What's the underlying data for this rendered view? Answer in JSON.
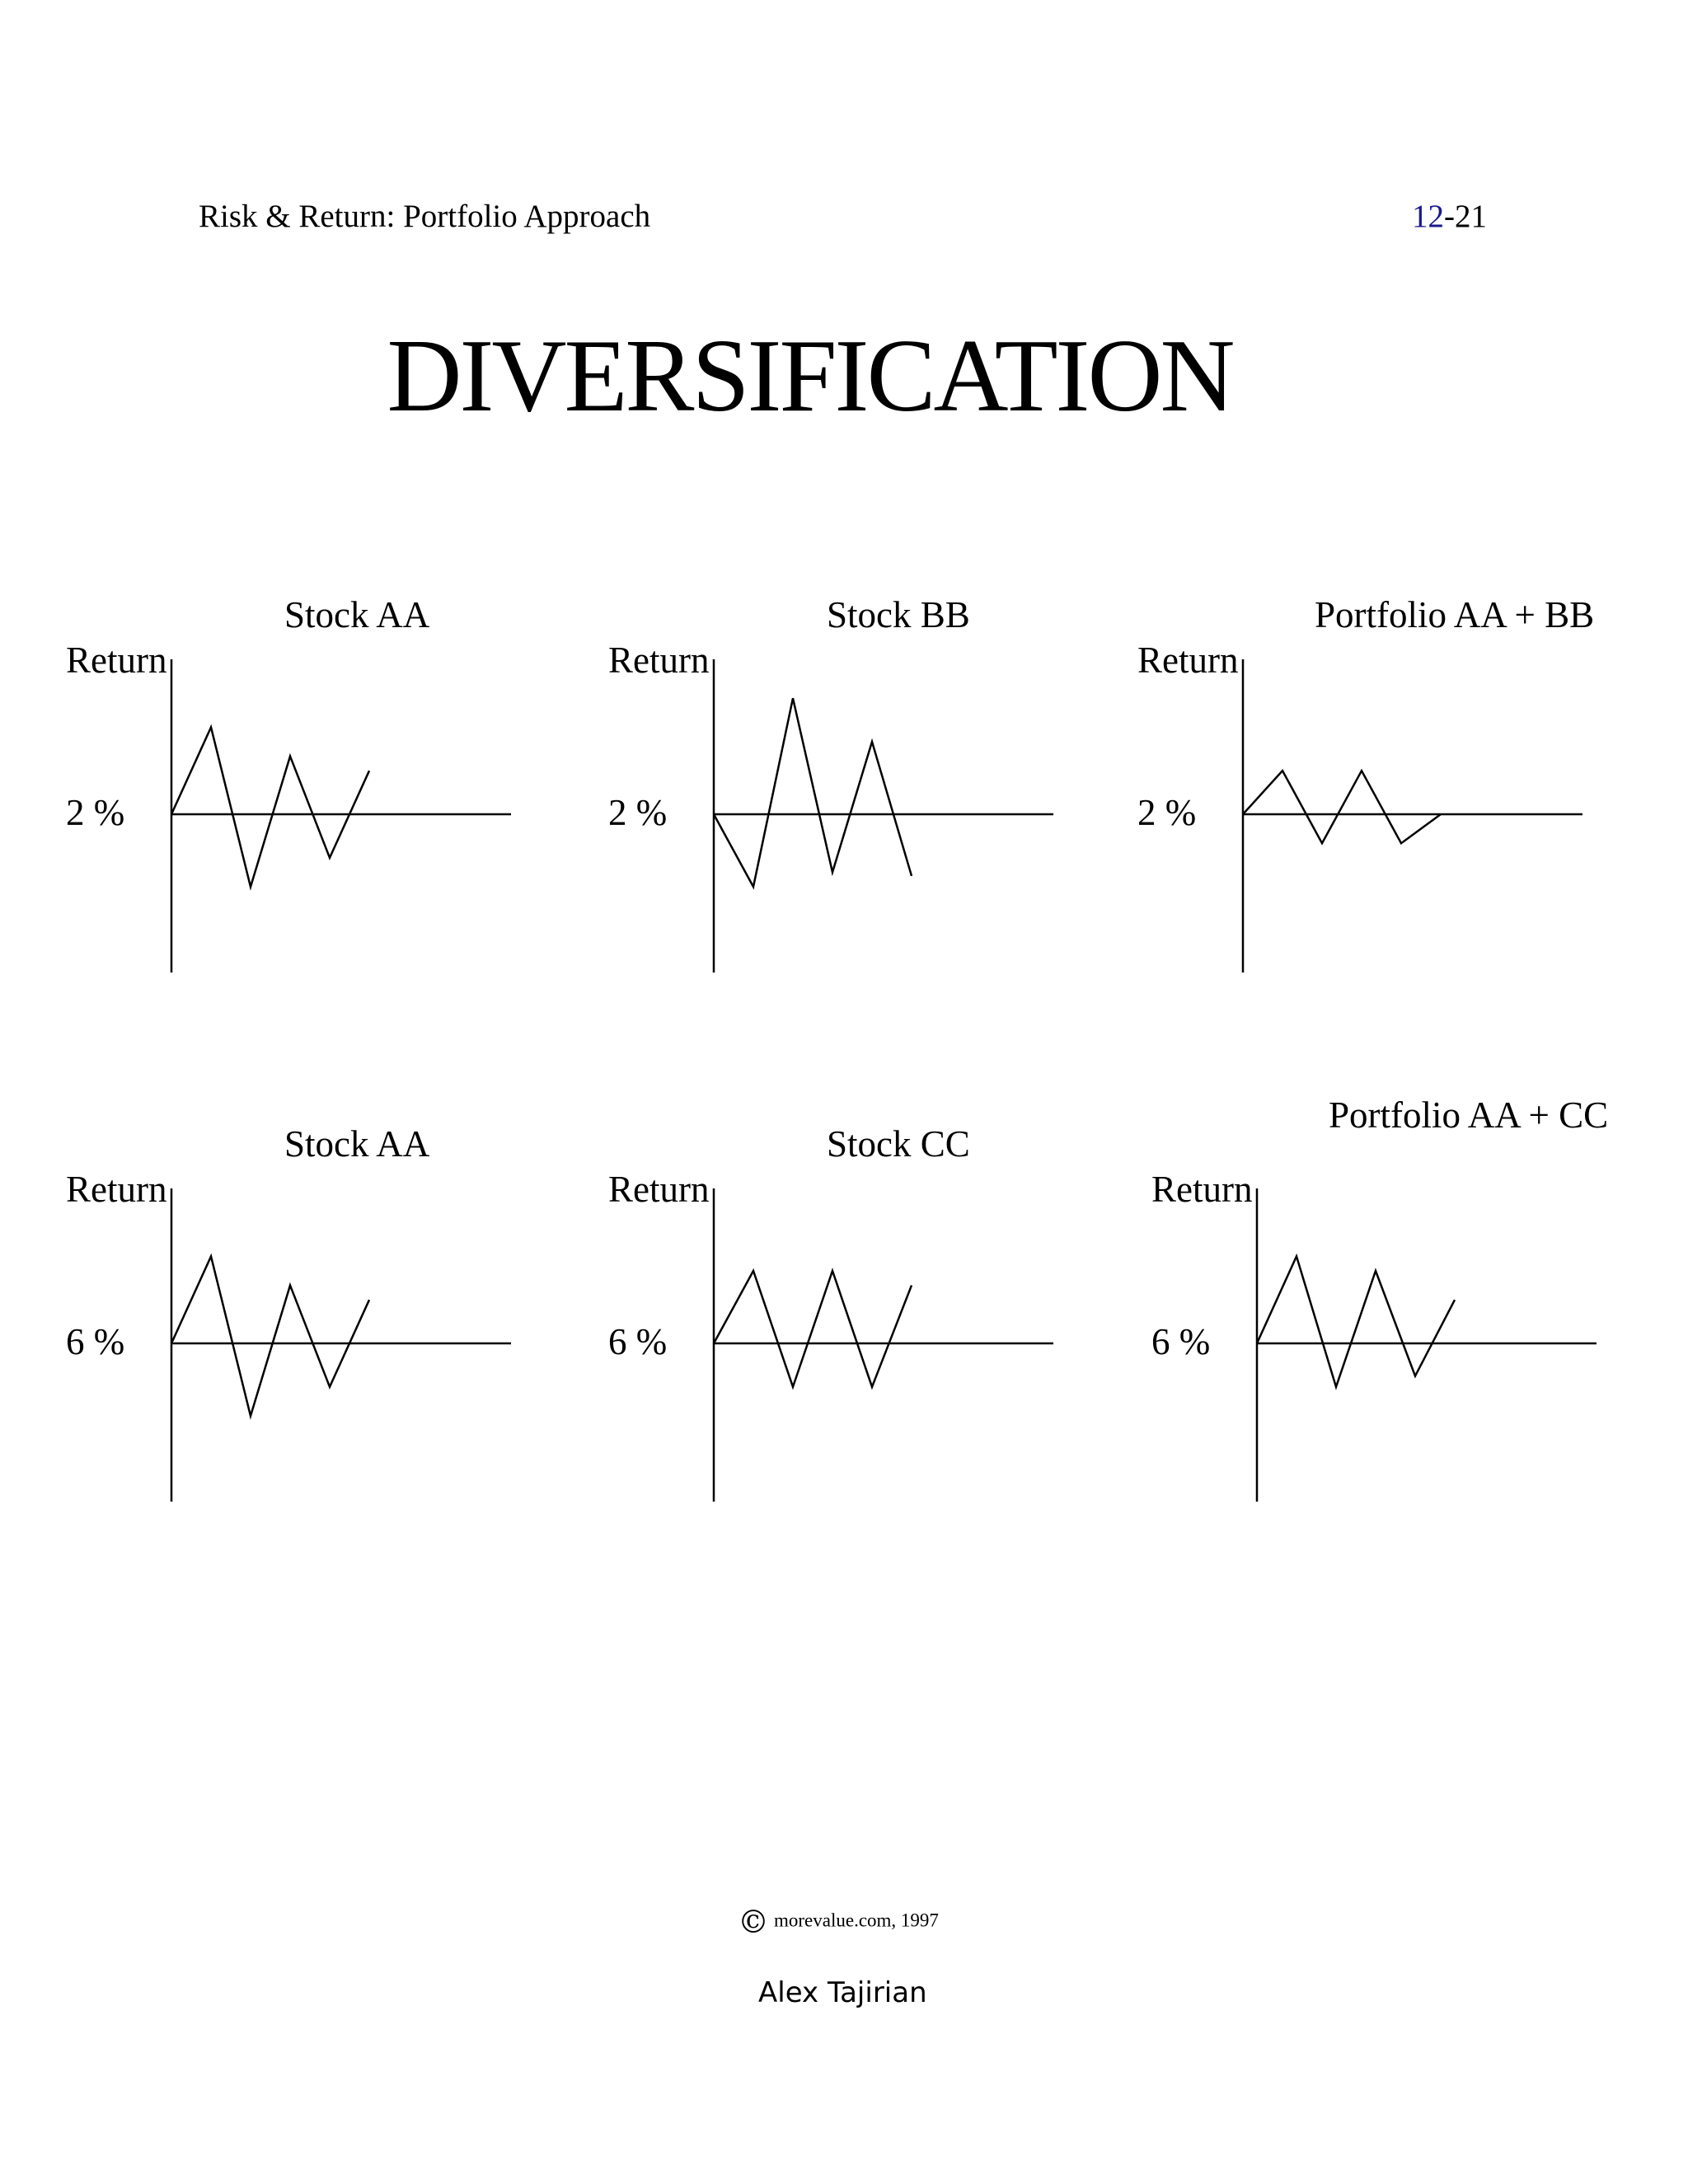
{
  "header": {
    "topic": "Risk & Return: Portfolio Approach",
    "page_chapter": "12",
    "page_rest": "-21"
  },
  "title": "DIVERSIFICATION",
  "footer": {
    "copyright_symbol": "©",
    "copyright_text": "morevalue.com, 1997",
    "author": "Alex Tajirian"
  },
  "chart_data": [
    {
      "type": "line",
      "title": "Stock AA",
      "ylabel": "Return",
      "baseline_label": "2 %",
      "grid": false,
      "x": [
        0,
        1,
        2,
        3,
        4,
        5
      ],
      "series": [
        {
          "values": [
            0,
            1.2,
            -1.0,
            0.8,
            -0.6,
            0.6
          ]
        }
      ]
    },
    {
      "type": "line",
      "title": "Stock BB",
      "ylabel": "Return",
      "baseline_label": "2 %",
      "grid": false,
      "x": [
        0,
        1,
        2,
        3,
        4,
        5
      ],
      "series": [
        {
          "values": [
            0,
            -1.0,
            1.6,
            -0.8,
            1.0,
            -0.85
          ]
        }
      ]
    },
    {
      "type": "line",
      "title": "Portfolio AA + BB",
      "ylabel": "Return",
      "baseline_label": "2 %",
      "grid": false,
      "x": [
        0,
        1,
        2,
        3,
        4,
        5
      ],
      "series": [
        {
          "values": [
            0,
            0.6,
            -0.4,
            0.6,
            -0.4,
            0
          ]
        }
      ]
    },
    {
      "type": "line",
      "title": "Stock AA",
      "ylabel": "Return",
      "baseline_label": "6 %",
      "grid": false,
      "x": [
        0,
        1,
        2,
        3,
        4,
        5
      ],
      "series": [
        {
          "values": [
            0,
            1.2,
            -1.0,
            0.8,
            -0.6,
            0.6
          ]
        }
      ]
    },
    {
      "type": "line",
      "title": "Stock CC",
      "ylabel": "Return",
      "baseline_label": "6 %",
      "grid": false,
      "x": [
        0,
        1,
        2,
        3,
        4,
        5
      ],
      "series": [
        {
          "values": [
            0,
            1.0,
            -0.6,
            1.0,
            -0.6,
            0.8
          ]
        }
      ]
    },
    {
      "type": "line",
      "title": "Portfolio AA + CC",
      "ylabel": "Return",
      "baseline_label": "6 %",
      "grid": false,
      "x": [
        0,
        1,
        2,
        3,
        4,
        5
      ],
      "series": [
        {
          "values": [
            0,
            1.2,
            -0.6,
            1.0,
            -0.45,
            0.6
          ]
        }
      ]
    }
  ]
}
